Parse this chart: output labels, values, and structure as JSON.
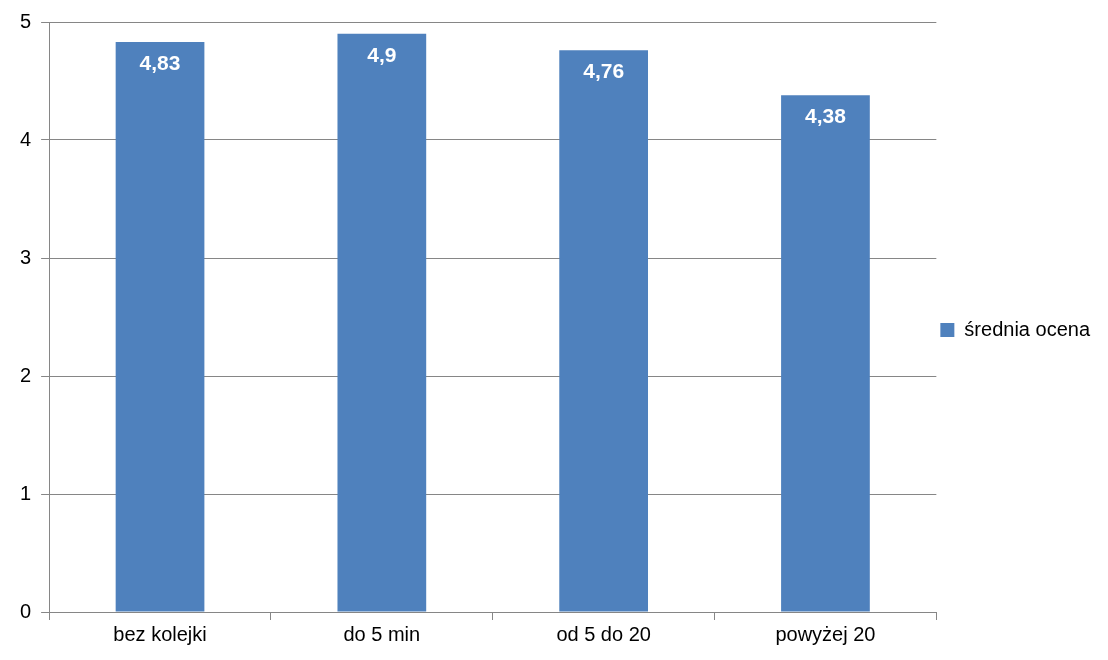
{
  "chart_data": {
    "type": "bar",
    "categories": [
      "bez kolejki",
      "do 5 min",
      "od 5 do 20",
      "powyżej 20"
    ],
    "series": [
      {
        "name": "średnia ocena",
        "color": "#4f81bd",
        "values": [
          4.83,
          4.9,
          4.76,
          4.38
        ],
        "value_labels": [
          "4,83",
          "4,9",
          "4,76",
          "4,38"
        ]
      }
    ],
    "ylim": [
      0,
      5
    ],
    "yticks": [
      0,
      1,
      2,
      3,
      4,
      5
    ],
    "grid": "y",
    "legend": "right"
  }
}
